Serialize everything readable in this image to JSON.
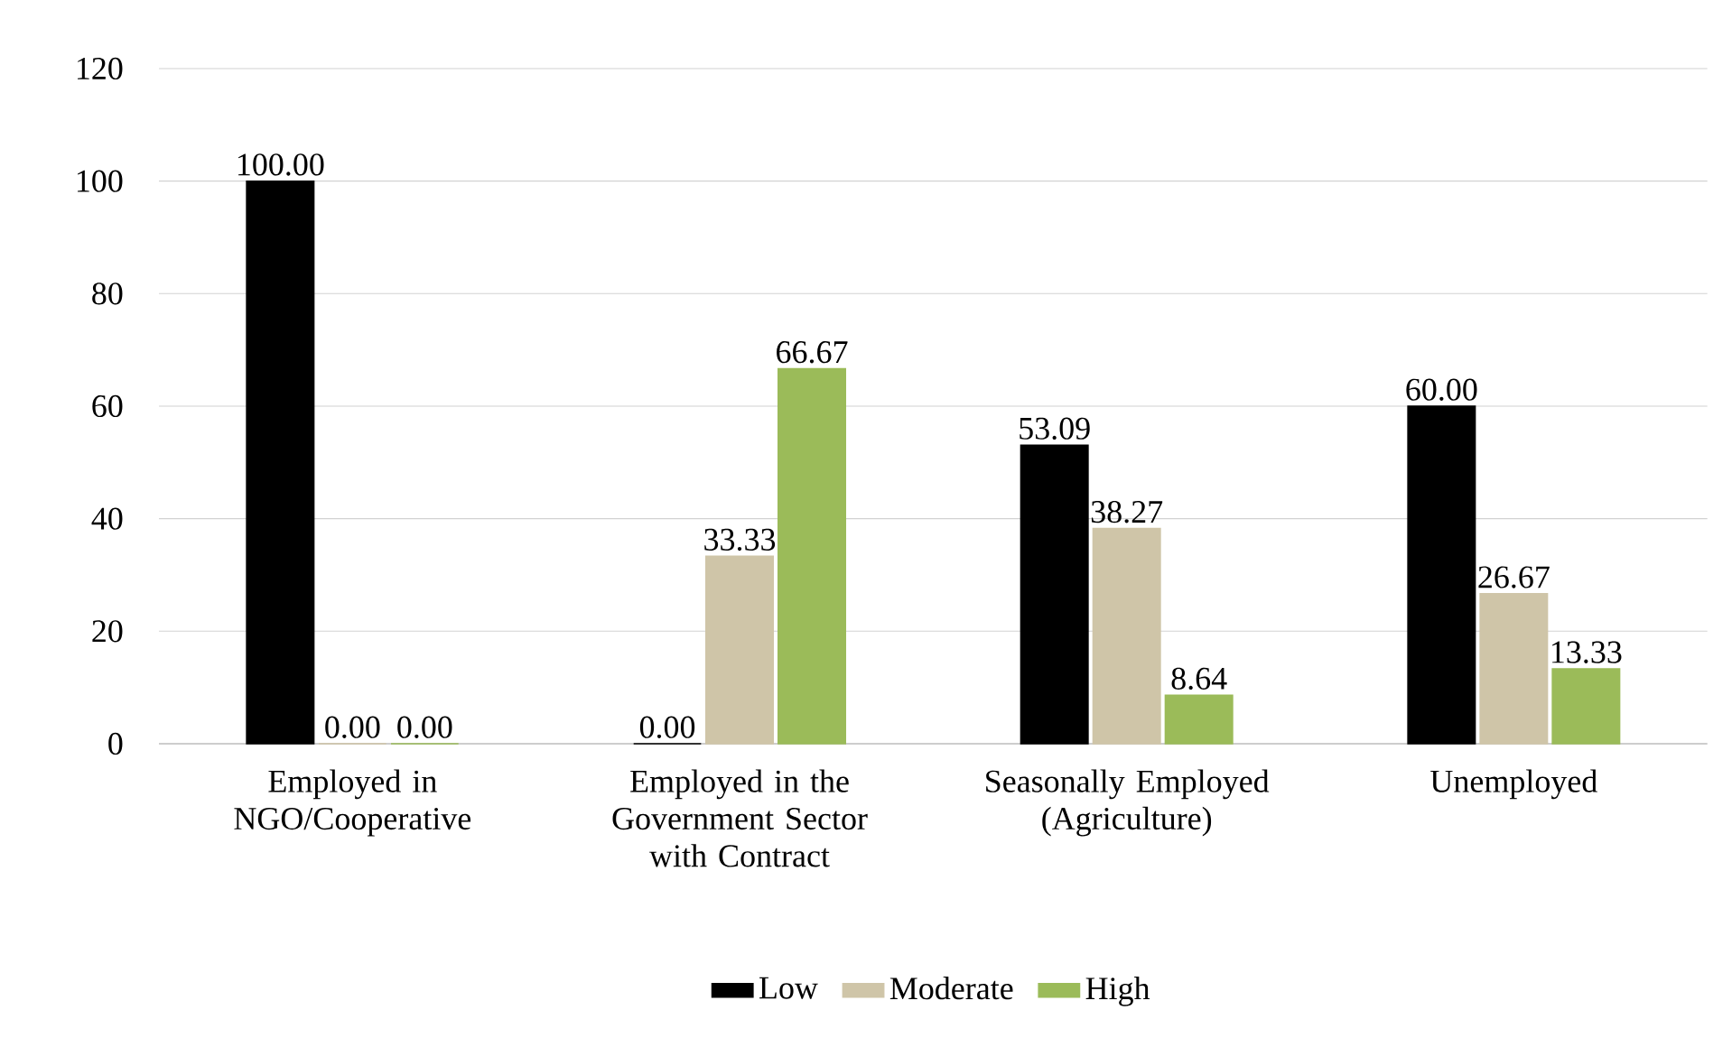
{
  "chart_data": {
    "type": "bar",
    "categories": [
      "Employed in NGO/Cooperative",
      "Employed in the Government Sector with Contract",
      "Seasonally Employed (Agriculture)",
      "Unemployed"
    ],
    "series": [
      {
        "name": "Low",
        "color": "#000000",
        "values": [
          100.0,
          0.0,
          53.09,
          60.0
        ],
        "value_labels": [
          "100.00",
          "0.00",
          "53.09",
          "60.00"
        ]
      },
      {
        "name": "Moderate",
        "color": "#cfc5a8",
        "values": [
          0.0,
          33.33,
          38.27,
          26.67
        ],
        "value_labels": [
          "0.00",
          "33.33",
          "38.27",
          "26.67"
        ]
      },
      {
        "name": "High",
        "color": "#9bbb59",
        "values": [
          0.0,
          66.67,
          8.64,
          13.33
        ],
        "value_labels": [
          "0.00",
          "66.67",
          "8.64",
          "13.33"
        ]
      }
    ],
    "ylim": [
      0,
      120
    ],
    "yticks": [
      0,
      20,
      40,
      60,
      80,
      100,
      120
    ],
    "grid": "y",
    "legend": "bottom"
  }
}
